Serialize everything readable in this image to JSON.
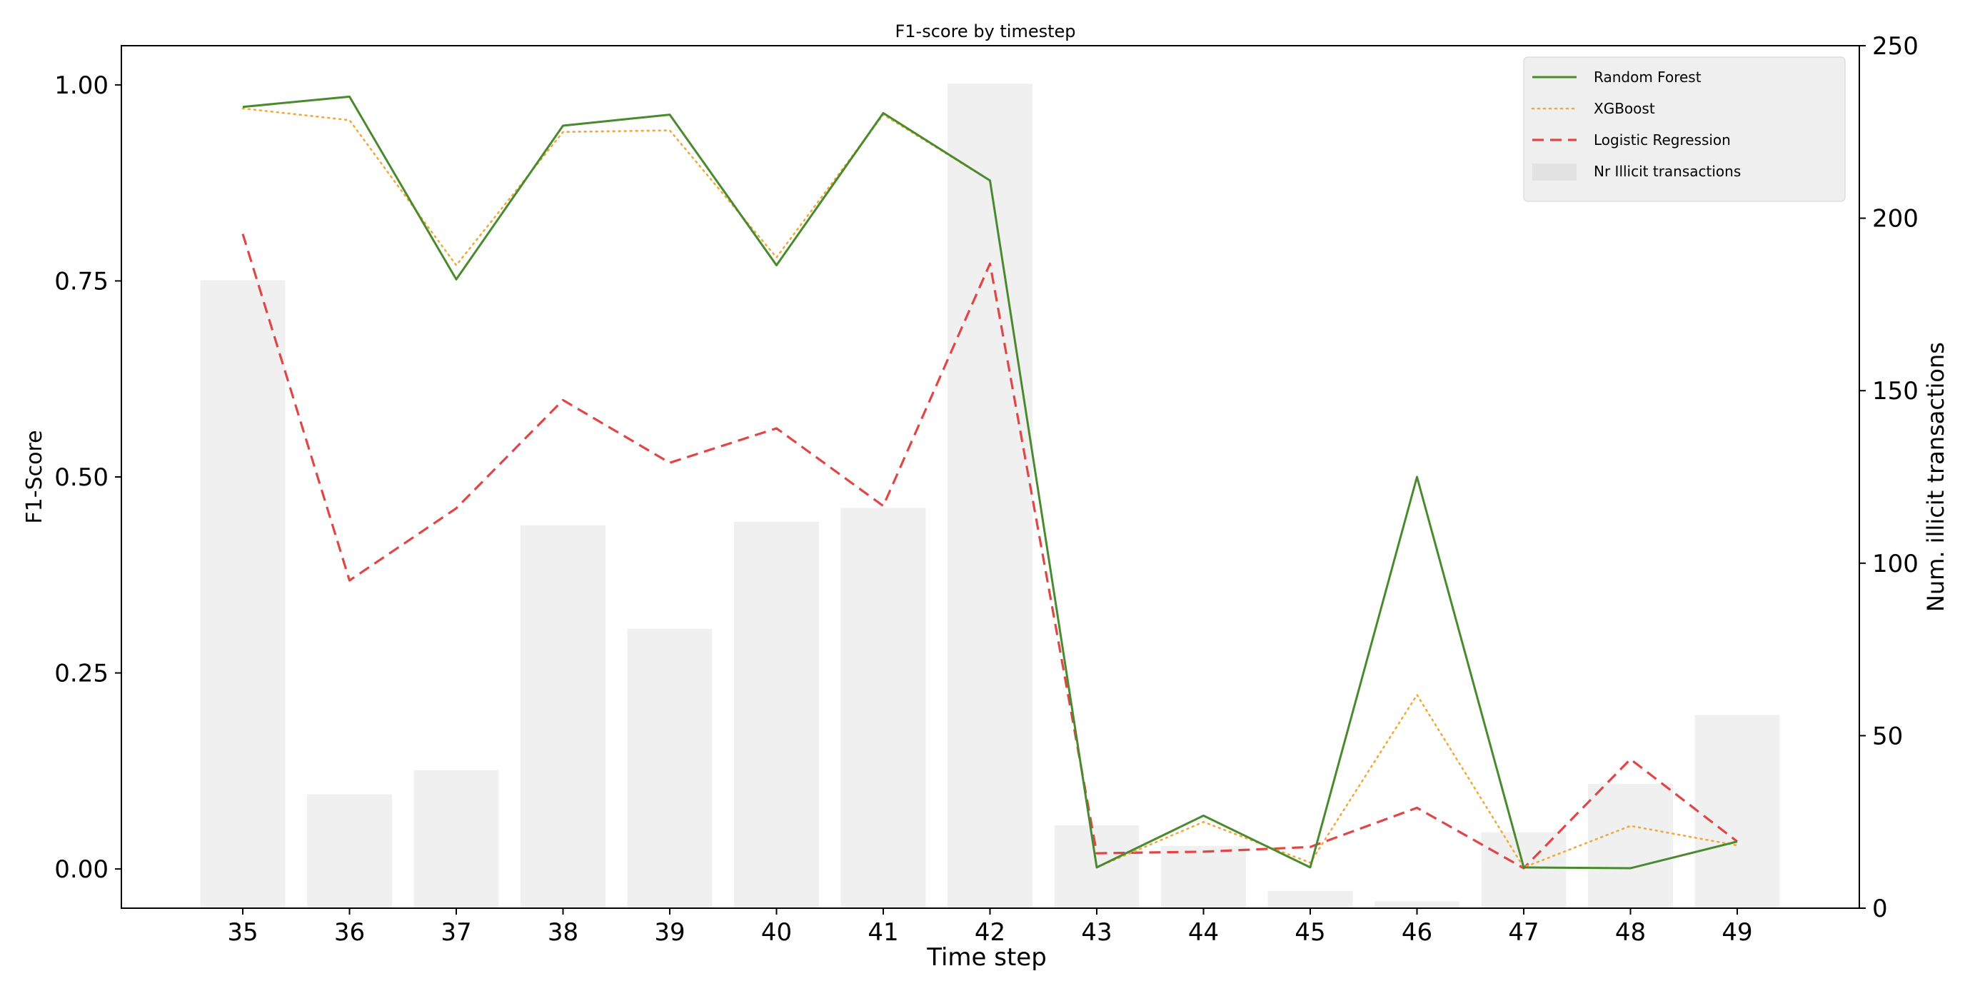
{
  "chart_data": {
    "type": "bar+line",
    "title": "F1-score by timestep",
    "xlabel": "Time step",
    "ylabel": "F1-Score",
    "y2label": "Num. illicit transactions",
    "categories": [
      "35",
      "36",
      "37",
      "38",
      "39",
      "40",
      "41",
      "42",
      "43",
      "44",
      "45",
      "46",
      "47",
      "48",
      "49"
    ],
    "ylim": [
      -0.05,
      1.05
    ],
    "y2lim": [
      0,
      250
    ],
    "yticks": [
      "0.00",
      "0.25",
      "0.50",
      "0.75",
      "1.00"
    ],
    "y2ticks": [
      "0",
      "50",
      "100",
      "150",
      "200",
      "250"
    ],
    "legend_position": "top-right",
    "bars": {
      "name": "Nr Illicit transactions",
      "color": "#f0f0f0",
      "values": [
        182,
        33,
        40,
        111,
        81,
        112,
        116,
        239,
        24,
        18,
        5,
        2,
        22,
        36,
        56
      ]
    },
    "series": [
      {
        "name": "Random Forest",
        "color": "#4a8a2e",
        "style": "solid",
        "values": [
          0.972,
          0.985,
          0.752,
          0.948,
          0.962,
          0.77,
          0.964,
          0.878,
          0.002,
          0.068,
          0.002,
          0.5,
          0.002,
          0.001,
          0.035
        ]
      },
      {
        "name": "XGBoost",
        "color": "#f2a93b",
        "style": "dotted",
        "values": [
          0.97,
          0.955,
          0.77,
          0.94,
          0.942,
          0.78,
          0.962,
          0.878,
          0.002,
          0.06,
          0.008,
          0.222,
          0.002,
          0.055,
          0.03
        ]
      },
      {
        "name": "Logistic Regression",
        "color": "#e04646",
        "style": "dashed",
        "values": [
          0.81,
          0.368,
          0.46,
          0.598,
          0.518,
          0.562,
          0.463,
          0.772,
          0.02,
          0.022,
          0.028,
          0.078,
          0.001,
          0.14,
          0.035
        ]
      }
    ]
  }
}
